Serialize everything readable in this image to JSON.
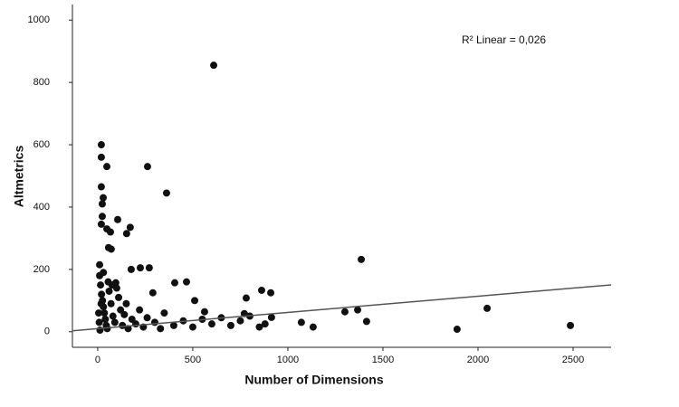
{
  "chart_data": {
    "type": "scatter",
    "x_label": "Number of Dimensions",
    "y_label": "Altmetrics",
    "annotation": "R² Linear = 0,026",
    "xlim": [
      -133,
      2700
    ],
    "ylim": [
      -50,
      1050
    ],
    "xticks": [
      0,
      500,
      1000,
      1500,
      2000,
      2500
    ],
    "yticks": [
      0,
      200,
      400,
      600,
      800,
      1000
    ],
    "color": "#111111",
    "fit_line": {
      "intercept": 10,
      "slope": 0.052,
      "color": "#555555"
    },
    "x": [
      610,
      19,
      19,
      48,
      262,
      362,
      19,
      29,
      24,
      24,
      19,
      48,
      67,
      105,
      171,
      152,
      57,
      71,
      1386,
      224,
      271,
      176,
      10,
      405,
      467,
      862,
      910,
      781,
      510,
      290,
      95,
      1300,
      1367,
      1414,
      1071,
      1133,
      1890,
      2048,
      2486,
      914,
      771,
      562,
      10,
      15,
      20,
      25,
      30,
      35,
      40,
      45,
      50,
      60,
      70,
      80,
      90,
      100,
      110,
      120,
      130,
      140,
      150,
      160,
      180,
      200,
      220,
      240,
      260,
      300,
      330,
      350,
      400,
      450,
      500,
      550,
      600,
      650,
      700,
      750,
      800,
      850,
      880,
      12,
      8,
      30,
      55,
      75,
      5,
      18
    ],
    "values": [
      855,
      600,
      560,
      530,
      530,
      445,
      465,
      430,
      410,
      370,
      345,
      330,
      320,
      360,
      335,
      315,
      270,
      265,
      232,
      205,
      205,
      200,
      215,
      157,
      160,
      133,
      125,
      108,
      100,
      125,
      157,
      64,
      70,
      33,
      30,
      15,
      8,
      75,
      20,
      46,
      58,
      64,
      180,
      150,
      120,
      100,
      80,
      60,
      40,
      20,
      10,
      130,
      90,
      50,
      30,
      140,
      110,
      70,
      20,
      55,
      90,
      10,
      40,
      25,
      70,
      15,
      45,
      30,
      10,
      60,
      20,
      35,
      15,
      40,
      25,
      45,
      20,
      35,
      50,
      15,
      25,
      5,
      30,
      190,
      160,
      150,
      60,
      90
    ]
  }
}
